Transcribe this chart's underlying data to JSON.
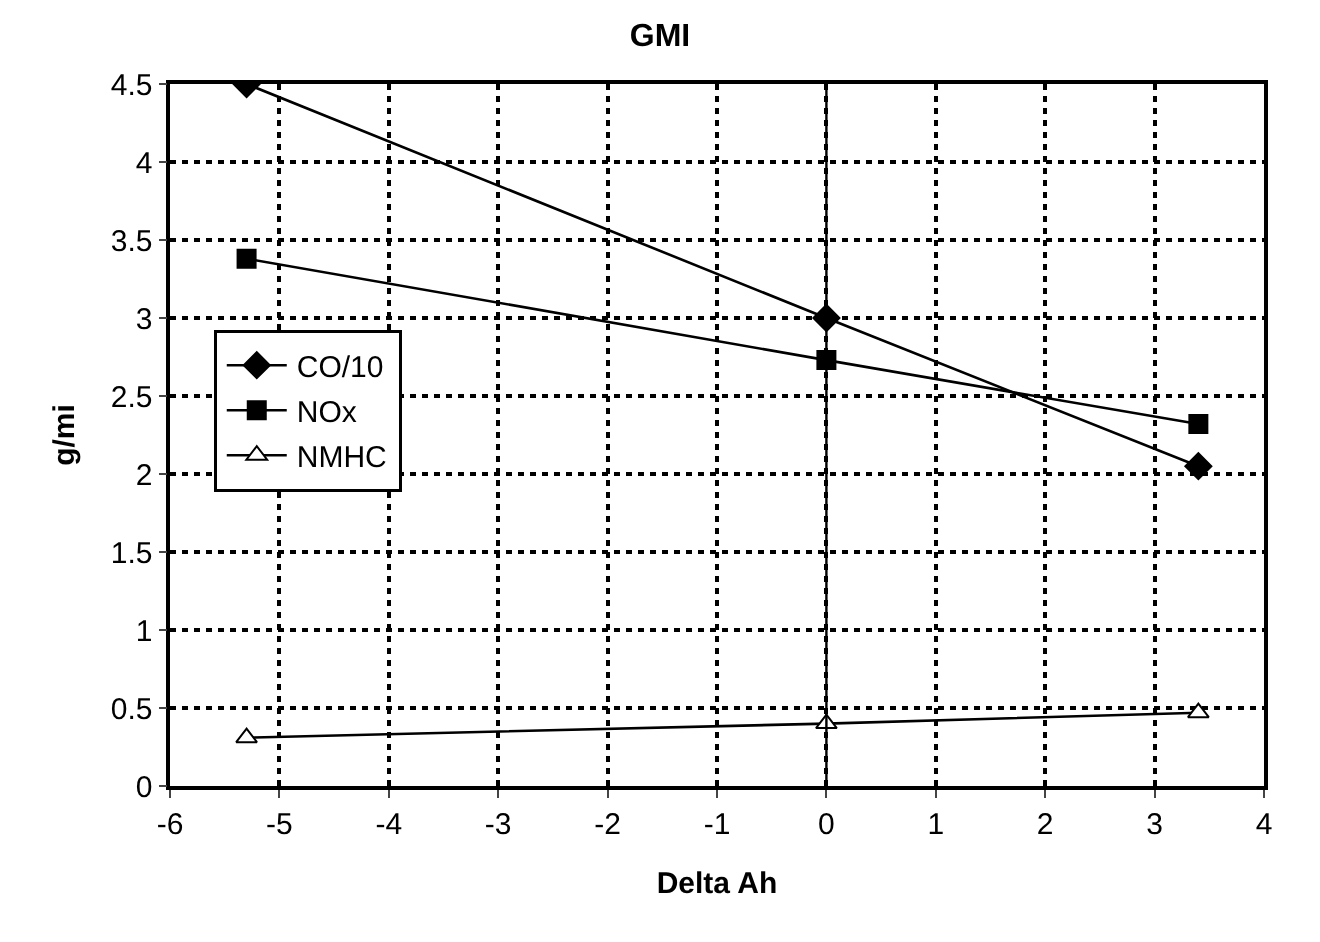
{
  "chart_data": {
    "type": "line",
    "title": "GMI",
    "xlabel": "Delta Ah",
    "ylabel": "g/mi",
    "x": [
      -5.3,
      0,
      3.4
    ],
    "series": [
      {
        "name": "CO/10",
        "color": "#000000",
        "marker": "diamond",
        "values": [
          4.5,
          3.0,
          2.05
        ]
      },
      {
        "name": "NOx",
        "color": "#000000",
        "marker": "square",
        "values": [
          3.38,
          2.73,
          2.32
        ]
      },
      {
        "name": "NMHC",
        "color": "#000000",
        "marker": "triangle",
        "values": [
          0.31,
          0.4,
          0.47
        ]
      }
    ],
    "xlim": [
      -6,
      4
    ],
    "xticks": [
      -6,
      -5,
      -4,
      -3,
      -2,
      -1,
      0,
      1,
      2,
      3,
      4
    ],
    "ylim": [
      0,
      4.5
    ],
    "yticks": [
      0,
      0.5,
      1,
      1.5,
      2,
      2.5,
      3,
      3.5,
      4,
      4.5
    ],
    "grid": true,
    "legend": "left",
    "line_style": "solid",
    "ref_lines": [
      {
        "axis": "x",
        "value": 0,
        "color": "#000000",
        "line_style": "solid"
      }
    ]
  }
}
